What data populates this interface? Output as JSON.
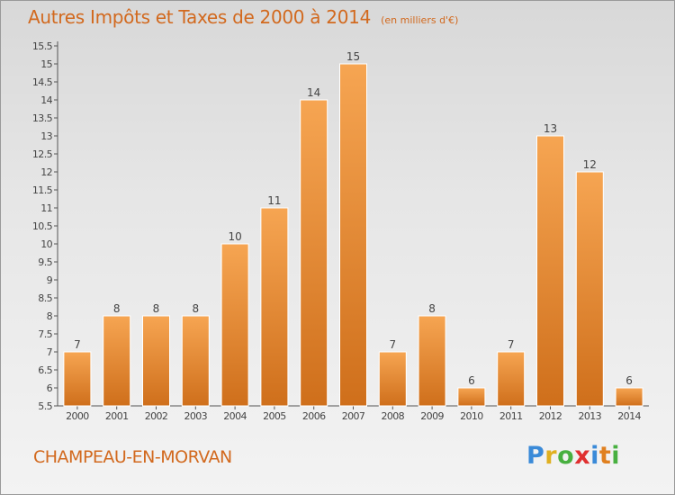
{
  "header": {
    "title": "Autres Impôts et Taxes de 2000 à 2014",
    "subtitle": "(en milliers d'€)"
  },
  "footer": {
    "commune": "CHAMPEAU-EN-MORVAN",
    "logo": {
      "letters": [
        "P",
        "r",
        "o",
        "x",
        "i",
        "t",
        "i"
      ]
    }
  },
  "colors": {
    "title": "#d2691e",
    "bar_light": "#f6a552",
    "bar_dark": "#cf6f1b"
  },
  "chart_data": {
    "type": "bar",
    "categories": [
      "2000",
      "2001",
      "2002",
      "2003",
      "2004",
      "2005",
      "2006",
      "2007",
      "2008",
      "2009",
      "2010",
      "2011",
      "2012",
      "2013",
      "2014"
    ],
    "values": [
      7,
      8,
      8,
      8,
      10,
      11,
      14,
      15,
      7,
      8,
      6,
      7,
      13,
      12,
      6
    ],
    "ylim": [
      5.5,
      15.5
    ],
    "yticks": [
      "5.5",
      "6",
      "6.5",
      "7",
      "7.5",
      "8",
      "8.5",
      "9",
      "9.5",
      "10",
      "10.5",
      "11",
      "11.5",
      "12",
      "12.5",
      "13",
      "13.5",
      "14",
      "14.5",
      "15",
      "15.5"
    ],
    "grid": false,
    "xlabel": "",
    "ylabel": ""
  }
}
